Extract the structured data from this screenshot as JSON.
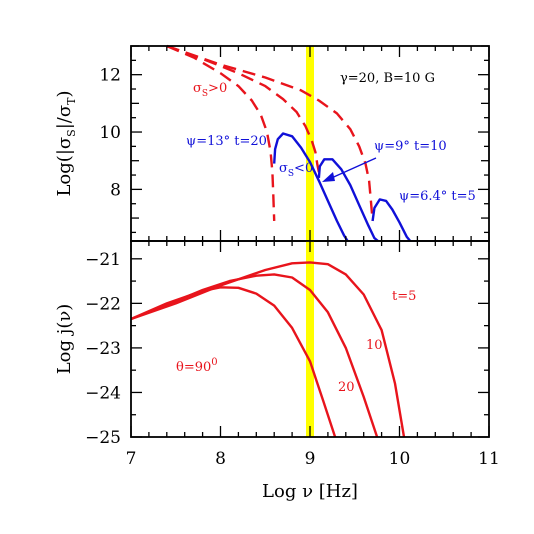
{
  "chart_data": [
    {
      "type": "line",
      "panel": "top",
      "ylabel": "Log(|σ_S|/σ_T)",
      "xlim": [
        7,
        11
      ],
      "ylim": [
        6.2,
        13
      ],
      "yticks": [
        8,
        10,
        12
      ],
      "xticks": [
        7,
        8,
        9,
        10,
        11
      ],
      "vertical_line": {
        "x": 9,
        "color": "#ffff00"
      },
      "annotations": {
        "params": "γ=20,  B=10 G",
        "sigma_pos": "σ",
        "sigma_pos_sub": "S",
        "sigma_pos_tail": ">0",
        "sigma_neg": "σ",
        "sigma_neg_sub": "S",
        "sigma_neg_tail": "<0",
        "psi13": "ψ=13° t=20",
        "psi9": "ψ=9° t=10",
        "psi64": "ψ=6.4° t=5"
      },
      "series": [
        {
          "style": "dashed",
          "color": "#e8141c",
          "x": [
            7.4,
            7.7,
            8.0,
            8.2,
            8.35,
            8.45,
            8.52,
            8.56,
            8.58,
            8.59,
            8.6
          ],
          "y": [
            13.0,
            12.6,
            12.05,
            11.6,
            11.1,
            10.6,
            10.0,
            9.3,
            8.6,
            7.8,
            6.9
          ]
        },
        {
          "style": "dashed",
          "color": "#e8141c",
          "x": [
            7.4,
            7.8,
            8.2,
            8.5,
            8.7,
            8.85,
            8.95,
            9.02,
            9.06,
            9.08,
            9.1
          ],
          "y": [
            13.0,
            12.55,
            12.05,
            11.6,
            11.15,
            10.7,
            10.2,
            9.7,
            9.3,
            8.9,
            8.6
          ]
        },
        {
          "style": "dashed",
          "color": "#e8141c",
          "x": [
            7.4,
            8.0,
            8.5,
            8.9,
            9.1,
            9.3,
            9.45,
            9.55,
            9.62,
            9.66,
            9.68,
            9.7
          ],
          "y": [
            13.0,
            12.35,
            11.9,
            11.45,
            11.1,
            10.65,
            10.1,
            9.5,
            8.9,
            8.3,
            7.6,
            6.9
          ]
        },
        {
          "style": "solid",
          "color": "#1010d8",
          "x": [
            8.6,
            8.61,
            8.64,
            8.7,
            8.8,
            8.9,
            9.0,
            9.1,
            9.2,
            9.3,
            9.38,
            9.42
          ],
          "y": [
            8.9,
            9.4,
            9.75,
            9.95,
            9.85,
            9.45,
            8.95,
            8.3,
            7.6,
            6.9,
            6.4,
            6.2
          ]
        },
        {
          "style": "solid",
          "color": "#1010d8",
          "x": [
            9.1,
            9.11,
            9.16,
            9.25,
            9.35,
            9.45,
            9.55,
            9.65,
            9.72,
            9.76
          ],
          "y": [
            8.4,
            8.8,
            9.05,
            9.05,
            8.7,
            8.15,
            7.45,
            6.75,
            6.3,
            6.2
          ]
        },
        {
          "style": "solid",
          "color": "#1010d8",
          "x": [
            9.7,
            9.72,
            9.78,
            9.85,
            9.92,
            10.0,
            10.08,
            10.12
          ],
          "y": [
            6.9,
            7.35,
            7.65,
            7.6,
            7.3,
            6.85,
            6.35,
            6.2
          ]
        }
      ]
    },
    {
      "type": "line",
      "panel": "bottom",
      "xlabel": "Log  ν  [Hz]",
      "ylabel": "Log  j(ν)",
      "xlim": [
        7,
        11
      ],
      "ylim": [
        -25,
        -20.6
      ],
      "yticks": [
        -25,
        -24,
        -23,
        -22,
        -21
      ],
      "xticks": [
        7,
        8,
        9,
        10,
        11
      ],
      "vertical_line": {
        "x": 9,
        "color": "#ffff00"
      },
      "annotations": {
        "theta": "θ=90",
        "theta_sup": "0",
        "t5": "t=5",
        "t10": "10",
        "t20": "20"
      },
      "series": [
        {
          "name": "t=5",
          "color": "#e8141c",
          "x": [
            7.0,
            7.5,
            8.0,
            8.5,
            8.8,
            9.0,
            9.2,
            9.4,
            9.6,
            9.8,
            9.95,
            10.05
          ],
          "y": [
            -22.35,
            -22.0,
            -21.6,
            -21.25,
            -21.1,
            -21.08,
            -21.12,
            -21.35,
            -21.8,
            -22.6,
            -23.8,
            -25.0
          ]
        },
        {
          "name": "10",
          "color": "#e8141c",
          "x": [
            7.0,
            7.5,
            7.8,
            8.1,
            8.4,
            8.6,
            8.8,
            9.0,
            9.2,
            9.4,
            9.6,
            9.75
          ],
          "y": [
            -22.35,
            -21.95,
            -21.7,
            -21.5,
            -21.38,
            -21.35,
            -21.42,
            -21.7,
            -22.2,
            -23.0,
            -24.1,
            -25.0
          ]
        },
        {
          "name": "20",
          "color": "#e8141c",
          "x": [
            7.0,
            7.4,
            7.8,
            8.0,
            8.2,
            8.4,
            8.6,
            8.8,
            9.0,
            9.15,
            9.28
          ],
          "y": [
            -22.35,
            -22.0,
            -21.72,
            -21.64,
            -21.65,
            -21.78,
            -22.05,
            -22.55,
            -23.3,
            -24.2,
            -25.0
          ]
        }
      ]
    }
  ]
}
